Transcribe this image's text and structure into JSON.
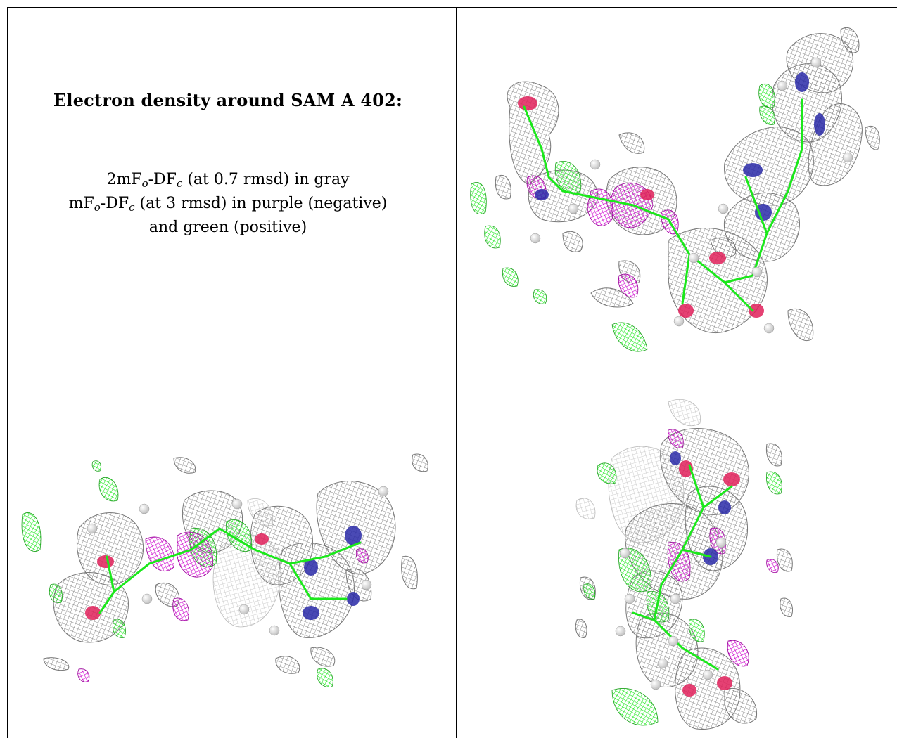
{
  "figure": {
    "title": "Electron density around SAM A 402:",
    "legend_lines": [
      {
        "main": "2mF",
        "sub1": "o",
        "mid": "-DF",
        "sub2": "c",
        "tail": " (at 0.7 rmsd) in gray"
      },
      {
        "main": "mF",
        "sub1": "o",
        "mid": "-DF",
        "sub2": "c",
        "tail": " (at 3 rmsd) in purple (negative)"
      },
      {
        "text": "and green (positive)"
      }
    ],
    "colors": {
      "mesh_2fofc": "#9a9a9a",
      "mesh_negative": "#d000d0",
      "mesh_positive": "#22ee22",
      "atom_oxygen": "#e0205a",
      "atom_nitrogen": "#2a2aa8",
      "atom_hydrogen": "#e6e6e6"
    },
    "panels": [
      {
        "id": "view-1",
        "description_icon": "electron-density-view"
      },
      {
        "id": "view-2",
        "description_icon": "electron-density-view"
      },
      {
        "id": "view-3",
        "description_icon": "electron-density-view"
      }
    ]
  }
}
